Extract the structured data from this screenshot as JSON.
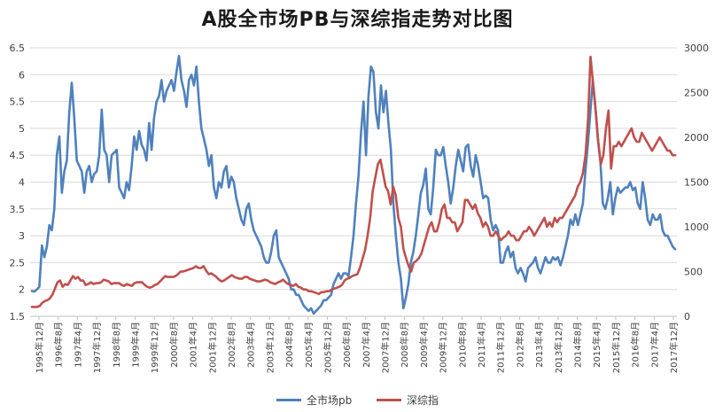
{
  "chart_data": {
    "type": "line",
    "title": "A股全市场PB与深综指走势对比图",
    "xlabel": "",
    "ylabel": "",
    "y_left_lim": [
      1.5,
      6.5
    ],
    "y_left_ticks": [
      "1.5",
      "2",
      "2.5",
      "3",
      "3.5",
      "4",
      "4.5",
      "5",
      "5.5",
      "6",
      "6.5"
    ],
    "y_right_lim": [
      0,
      3000
    ],
    "y_right_ticks": [
      "0",
      "500",
      "1000",
      "1500",
      "2000",
      "2500",
      "3000"
    ],
    "x_tick_labels": [
      "1995年12月",
      "1996年8月",
      "1997年4月",
      "1997年12月",
      "1998年8月",
      "1999年4月",
      "1999年12月",
      "2000年8月",
      "2001年4月",
      "2001年12月",
      "2002年8月",
      "2003年4月",
      "2003年12月",
      "2004年8月",
      "2005年4月",
      "2005年12月",
      "2006年8月",
      "2007年4月",
      "2007年12月",
      "2008年8月",
      "2009年4月",
      "2009年12月",
      "2010年8月",
      "2011年4月",
      "2011年12月",
      "2012年8月",
      "2013年4月",
      "2013年12月",
      "2014年8月",
      "2015年4月",
      "2015年12月",
      "2016年8月",
      "2017年4月",
      "2017年12月"
    ],
    "grid": true,
    "legend_position": "bottom",
    "series": [
      {
        "name": "全市场pb",
        "axis": "left",
        "color": "#4f81bd",
        "values": [
          1.97,
          1.96,
          2.0,
          2.05,
          2.82,
          2.6,
          2.8,
          3.2,
          3.1,
          3.5,
          4.5,
          4.85,
          3.8,
          4.2,
          4.4,
          5.3,
          5.85,
          5.2,
          4.4,
          4.3,
          4.2,
          3.8,
          4.2,
          4.3,
          4.0,
          4.15,
          4.2,
          4.5,
          5.35,
          4.6,
          4.5,
          4.0,
          4.5,
          4.55,
          4.6,
          3.9,
          3.8,
          3.7,
          4.0,
          3.85,
          4.3,
          4.85,
          4.6,
          4.95,
          4.7,
          4.6,
          4.4,
          5.1,
          4.6,
          5.2,
          5.5,
          5.6,
          5.9,
          5.5,
          5.7,
          5.8,
          5.9,
          5.7,
          6.05,
          6.35,
          5.9,
          5.7,
          5.4,
          5.9,
          6.0,
          5.8,
          6.15,
          5.5,
          5.0,
          4.8,
          4.6,
          4.3,
          4.5,
          3.9,
          3.7,
          4.0,
          3.9,
          4.2,
          4.3,
          3.9,
          4.1,
          4.0,
          3.7,
          3.5,
          3.3,
          3.2,
          3.5,
          3.6,
          3.3,
          3.1,
          3.0,
          2.9,
          2.8,
          2.6,
          2.5,
          2.5,
          2.7,
          3.0,
          3.1,
          2.6,
          2.5,
          2.4,
          2.3,
          2.2,
          2.0,
          2.0,
          1.9,
          1.9,
          1.8,
          1.7,
          1.65,
          1.6,
          1.65,
          1.55,
          1.6,
          1.65,
          1.7,
          1.8,
          1.8,
          1.85,
          1.9,
          2.1,
          2.2,
          2.3,
          2.2,
          2.3,
          2.3,
          2.25,
          2.6,
          3.0,
          3.6,
          4.1,
          4.9,
          5.5,
          4.5,
          5.6,
          6.15,
          6.05,
          5.3,
          5.0,
          5.8,
          5.3,
          5.7,
          5.1,
          4.6,
          3.6,
          3.0,
          2.5,
          2.2,
          1.65,
          1.85,
          2.1,
          2.5,
          2.7,
          3.0,
          3.4,
          3.8,
          3.95,
          4.25,
          3.5,
          3.4,
          3.9,
          4.6,
          4.5,
          4.5,
          4.65,
          4.3,
          4.0,
          3.6,
          3.9,
          4.3,
          4.6,
          4.4,
          4.2,
          4.65,
          4.7,
          4.3,
          4.1,
          4.5,
          4.3,
          4.0,
          3.7,
          3.75,
          3.7,
          3.3,
          3.1,
          3.2,
          3.1,
          2.5,
          2.5,
          2.7,
          2.8,
          2.6,
          2.7,
          2.4,
          2.3,
          2.4,
          2.3,
          2.15,
          2.4,
          2.45,
          2.5,
          2.6,
          2.4,
          2.3,
          2.45,
          2.6,
          2.5,
          2.5,
          2.6,
          2.55,
          2.6,
          2.45,
          2.6,
          2.8,
          3.0,
          3.3,
          3.2,
          3.4,
          3.2,
          3.4,
          3.6,
          4.2,
          4.7,
          5.3,
          5.9,
          5.4,
          4.8,
          4.4,
          3.6,
          3.5,
          3.7,
          4.0,
          3.4,
          3.7,
          3.9,
          3.8,
          3.85,
          3.9,
          3.9,
          4.0,
          3.85,
          3.9,
          3.6,
          3.5,
          4.0,
          3.7,
          3.3,
          3.2,
          3.4,
          3.3,
          3.3,
          3.4,
          3.1,
          3.0,
          3.0,
          2.9,
          2.8,
          2.75
        ]
      },
      {
        "name": "深综指",
        "axis": "right",
        "color": "#c0504d",
        "values": [
          105,
          105,
          105,
          115,
          150,
          170,
          180,
          200,
          240,
          310,
          380,
          400,
          330,
          360,
          350,
          400,
          450,
          420,
          440,
          400,
          400,
          350,
          360,
          380,
          360,
          370,
          370,
          380,
          410,
          400,
          390,
          360,
          370,
          370,
          370,
          350,
          340,
          360,
          350,
          340,
          370,
          380,
          380,
          380,
          350,
          330,
          320,
          330,
          350,
          360,
          390,
          420,
          450,
          440,
          440,
          440,
          450,
          470,
          500,
          500,
          510,
          520,
          530,
          540,
          560,
          540,
          540,
          560,
          510,
          470,
          480,
          460,
          440,
          410,
          390,
          400,
          420,
          440,
          460,
          440,
          430,
          420,
          420,
          440,
          440,
          420,
          410,
          400,
          390,
          390,
          400,
          410,
          400,
          380,
          370,
          360,
          380,
          390,
          410,
          380,
          360,
          350,
          340,
          360,
          330,
          320,
          300,
          300,
          280,
          280,
          270,
          260,
          250,
          270,
          270,
          280,
          280,
          300,
          310,
          320,
          330,
          350,
          400,
          420,
          430,
          450,
          460,
          470,
          540,
          640,
          740,
          900,
          1100,
          1400,
          1550,
          1700,
          1750,
          1600,
          1450,
          1400,
          1250,
          1450,
          1350,
          1100,
          1000,
          750,
          650,
          560,
          500,
          600,
          620,
          650,
          700,
          800,
          900,
          1000,
          1050,
          950,
          950,
          1050,
          1200,
          1250,
          1100,
          1100,
          1050,
          1050,
          950,
          1000,
          1050,
          1300,
          1300,
          1250,
          1200,
          1250,
          1150,
          1100,
          1000,
          1050,
          1000,
          900,
          900,
          950,
          900,
          850,
          880,
          900,
          950,
          900,
          900,
          850,
          850,
          900,
          950,
          950,
          1000,
          960,
          900,
          950,
          1000,
          1050,
          1100,
          1000,
          1050,
          1000,
          1100,
          1050,
          1100,
          1100,
          1150,
          1200,
          1250,
          1300,
          1350,
          1450,
          1500,
          1600,
          1800,
          2200,
          2900,
          2600,
          2300,
          1950,
          1700,
          1800,
          2100,
          2300,
          1650,
          1900,
          1900,
          1950,
          1900,
          1950,
          2000,
          2050,
          2100,
          2000,
          1950,
          1950,
          2050,
          2000,
          1950,
          1900,
          1850,
          1900,
          1950,
          2000,
          1950,
          1900,
          1850,
          1850,
          1800,
          1800
        ]
      }
    ]
  }
}
